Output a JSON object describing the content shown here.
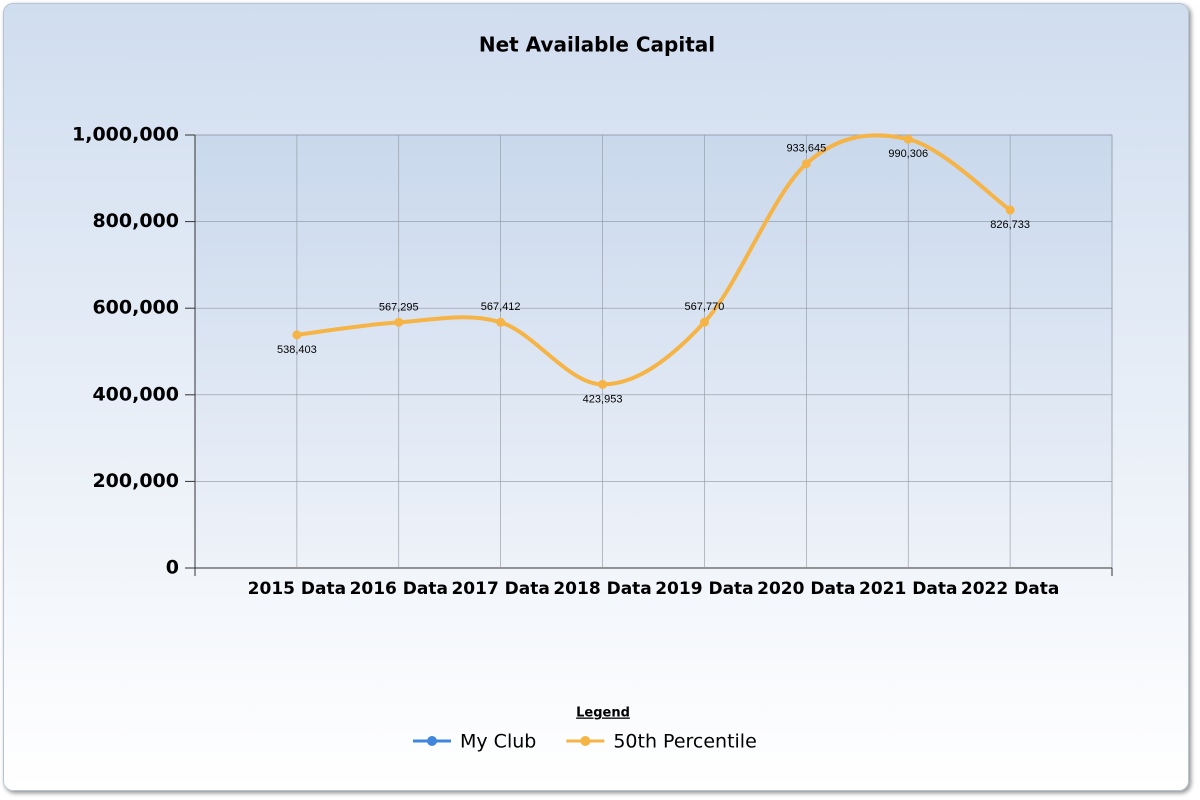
{
  "chart_data": {
    "type": "line",
    "title": "Net Available Capital",
    "categories": [
      "2015 Data",
      "2016 Data",
      "2017 Data",
      "2018 Data",
      "2019 Data",
      "2020 Data",
      "2021 Data",
      "2022 Data"
    ],
    "series": [
      {
        "name": "My Club",
        "color": "#3f86dc",
        "values": [
          null,
          null,
          null,
          null,
          null,
          null,
          null,
          null
        ]
      },
      {
        "name": "50th Percentile",
        "color": "#f5b445",
        "values": [
          538403,
          567295,
          567412,
          423953,
          567770,
          933645,
          990306,
          826733
        ],
        "value_labels": [
          "538,403",
          "567,295",
          "567,412",
          "423,953",
          "567,770",
          "933,645",
          "990,306",
          "826,733"
        ]
      }
    ],
    "ylim": [
      0,
      1000000
    ],
    "yticks": [
      0,
      {
        "value": 200000,
        "label": "200,000"
      },
      {
        "value": 400000,
        "label": "400,000"
      },
      {
        "value": 600000,
        "label": "600,000"
      },
      {
        "value": 800000,
        "label": "800,000"
      },
      {
        "value": 1000000,
        "label": "1,000,000"
      }
    ],
    "grid": true,
    "legend_title": "Legend",
    "legend": "bottom"
  }
}
